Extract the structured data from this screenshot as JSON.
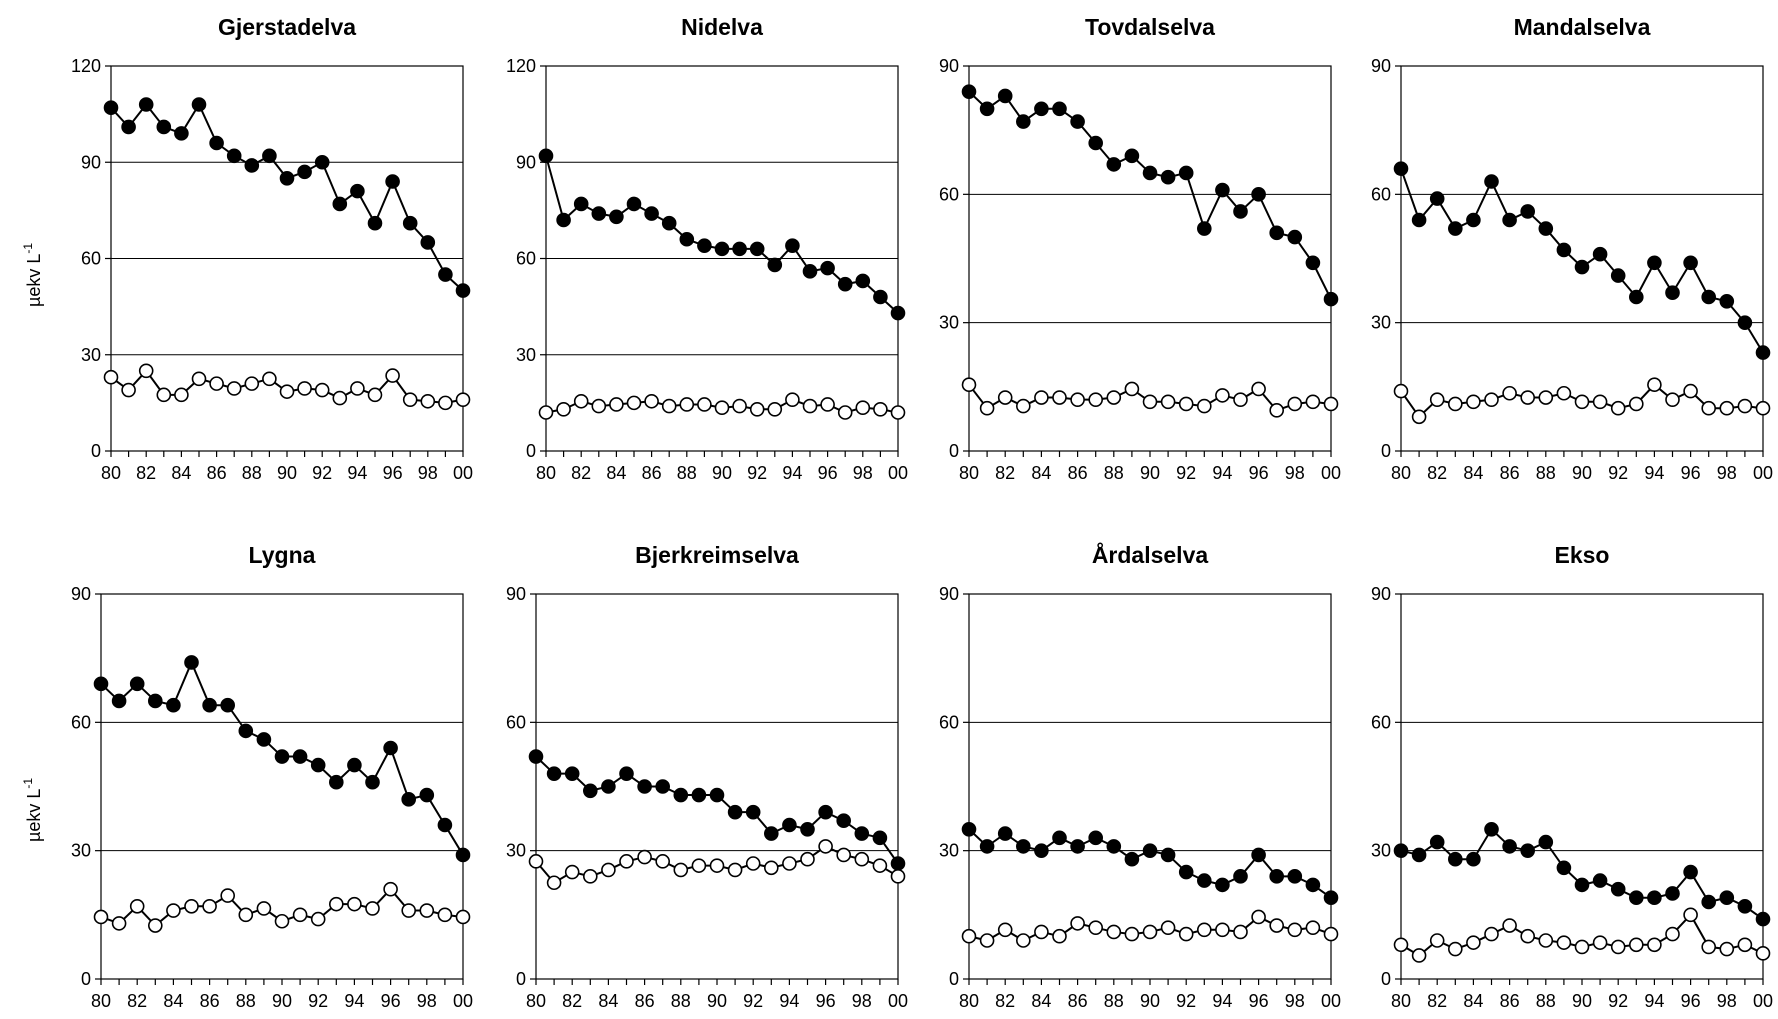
{
  "y_axis_label": "µekv L",
  "y_axis_label_exponent": "-1",
  "legend": [],
  "chart_data": [
    {
      "type": "line",
      "title": "Gjerstadelva",
      "x": [
        "80",
        "81",
        "82",
        "83",
        "84",
        "85",
        "86",
        "87",
        "88",
        "89",
        "90",
        "91",
        "92",
        "93",
        "94",
        "95",
        "96",
        "97",
        "98",
        "99",
        "00"
      ],
      "xticks": [
        "80",
        "82",
        "84",
        "86",
        "88",
        "90",
        "92",
        "94",
        "96",
        "98",
        "00"
      ],
      "ylim": [
        0,
        120
      ],
      "yticks": [
        "0",
        "30",
        "60",
        "90",
        "120"
      ],
      "gridlines": [
        30,
        60,
        90
      ],
      "series": [
        {
          "marker": "filled",
          "values": [
            107,
            101,
            108,
            101,
            99,
            108,
            96,
            92,
            89,
            92,
            85,
            87,
            90,
            77,
            81,
            71,
            84,
            71,
            65,
            55,
            50
          ]
        },
        {
          "marker": "open",
          "values": [
            23,
            19,
            25,
            17.5,
            17.5,
            22.5,
            21,
            19.5,
            21,
            22.5,
            18.5,
            19.5,
            19,
            16.5,
            19.5,
            17.5,
            23.5,
            16,
            15.5,
            15,
            16
          ]
        }
      ]
    },
    {
      "type": "line",
      "title": "Nidelva",
      "x": [
        "80",
        "81",
        "82",
        "83",
        "84",
        "85",
        "86",
        "87",
        "88",
        "89",
        "90",
        "91",
        "92",
        "93",
        "94",
        "95",
        "96",
        "97",
        "98",
        "99",
        "00"
      ],
      "xticks": [
        "80",
        "82",
        "84",
        "86",
        "88",
        "90",
        "92",
        "94",
        "96",
        "98",
        "00"
      ],
      "ylim": [
        0,
        120
      ],
      "yticks": [
        "0",
        "30",
        "60",
        "90",
        "120"
      ],
      "gridlines": [
        30,
        60,
        90
      ],
      "series": [
        {
          "marker": "filled",
          "values": [
            92,
            72,
            77,
            74,
            73,
            77,
            74,
            71,
            66,
            64,
            63,
            63,
            63,
            58,
            64,
            56,
            57,
            52,
            53,
            48,
            43
          ]
        },
        {
          "marker": "open",
          "values": [
            12,
            13,
            15.5,
            14,
            14.5,
            15,
            15.5,
            14,
            14.5,
            14.5,
            13.5,
            14,
            13,
            13,
            16,
            14,
            14.5,
            12,
            13.5,
            13,
            12
          ]
        }
      ]
    },
    {
      "type": "line",
      "title": "Tovdalselva",
      "x": [
        "80",
        "81",
        "82",
        "83",
        "84",
        "85",
        "86",
        "87",
        "88",
        "89",
        "90",
        "91",
        "92",
        "93",
        "94",
        "95",
        "96",
        "97",
        "98",
        "99",
        "00"
      ],
      "xticks": [
        "80",
        "82",
        "84",
        "86",
        "88",
        "90",
        "92",
        "94",
        "96",
        "98",
        "00"
      ],
      "ylim": [
        0,
        90
      ],
      "yticks": [
        "0",
        "30",
        "60",
        "90"
      ],
      "gridlines": [
        30,
        60
      ],
      "series": [
        {
          "marker": "filled",
          "values": [
            84,
            80,
            83,
            77,
            80,
            80,
            77,
            72,
            67,
            69,
            65,
            64,
            65,
            52,
            61,
            56,
            60,
            51,
            50,
            44,
            35.5
          ]
        },
        {
          "marker": "open",
          "values": [
            15.5,
            10,
            12.5,
            10.5,
            12.5,
            12.5,
            12,
            12,
            12.5,
            14.5,
            11.5,
            11.5,
            11,
            10.5,
            13,
            12,
            14.5,
            9.5,
            11,
            11.5,
            11
          ]
        }
      ]
    },
    {
      "type": "line",
      "title": "Mandalselva",
      "x": [
        "80",
        "81",
        "82",
        "83",
        "84",
        "85",
        "86",
        "87",
        "88",
        "89",
        "90",
        "91",
        "92",
        "93",
        "94",
        "95",
        "96",
        "97",
        "98",
        "99",
        "00"
      ],
      "xticks": [
        "80",
        "82",
        "84",
        "86",
        "88",
        "90",
        "92",
        "94",
        "96",
        "98",
        "00"
      ],
      "ylim": [
        0,
        90
      ],
      "yticks": [
        "0",
        "30",
        "60",
        "90"
      ],
      "gridlines": [
        30,
        60
      ],
      "series": [
        {
          "marker": "filled",
          "values": [
            66,
            54,
            59,
            52,
            54,
            63,
            54,
            56,
            52,
            47,
            43,
            46,
            41,
            36,
            44,
            37,
            44,
            36,
            35,
            30,
            23
          ]
        },
        {
          "marker": "open",
          "values": [
            14,
            8,
            12,
            11,
            11.5,
            12,
            13.5,
            12.5,
            12.5,
            13.5,
            11.5,
            11.5,
            10,
            11,
            15.5,
            12,
            14,
            10,
            10,
            10.5,
            10
          ]
        }
      ]
    },
    {
      "type": "line",
      "title": "Lygna",
      "x": [
        "80",
        "81",
        "82",
        "83",
        "84",
        "85",
        "86",
        "87",
        "88",
        "89",
        "90",
        "91",
        "92",
        "93",
        "94",
        "95",
        "96",
        "97",
        "98",
        "99",
        "00"
      ],
      "xticks": [
        "80",
        "82",
        "84",
        "86",
        "88",
        "90",
        "92",
        "94",
        "96",
        "98",
        "00"
      ],
      "ylim": [
        0,
        90
      ],
      "yticks": [
        "0",
        "30",
        "60",
        "90"
      ],
      "gridlines": [
        30,
        60
      ],
      "series": [
        {
          "marker": "filled",
          "values": [
            69,
            65,
            69,
            65,
            64,
            74,
            64,
            64,
            58,
            56,
            52,
            52,
            50,
            46,
            50,
            46,
            54,
            42,
            43,
            36,
            29
          ]
        },
        {
          "marker": "open",
          "values": [
            14.5,
            13,
            17,
            12.5,
            16,
            17,
            17,
            19.5,
            15,
            16.5,
            13.5,
            15,
            14,
            17.5,
            17.5,
            16.5,
            21,
            16,
            16,
            15,
            14.5
          ]
        }
      ]
    },
    {
      "type": "line",
      "title": "Bjerkreimselva",
      "x": [
        "80",
        "81",
        "82",
        "83",
        "84",
        "85",
        "86",
        "87",
        "88",
        "89",
        "90",
        "91",
        "92",
        "93",
        "94",
        "95",
        "96",
        "97",
        "98",
        "99",
        "00"
      ],
      "xticks": [
        "80",
        "82",
        "84",
        "86",
        "88",
        "90",
        "92",
        "94",
        "96",
        "98",
        "00"
      ],
      "ylim": [
        0,
        90
      ],
      "yticks": [
        "0",
        "30",
        "60",
        "90"
      ],
      "gridlines": [
        30,
        60
      ],
      "series": [
        {
          "marker": "filled",
          "values": [
            52,
            48,
            48,
            44,
            45,
            48,
            45,
            45,
            43,
            43,
            43,
            39,
            39,
            34,
            36,
            35,
            39,
            37,
            34,
            33,
            27
          ]
        },
        {
          "marker": "open",
          "values": [
            27.5,
            22.5,
            25,
            24,
            25.5,
            27.5,
            28.5,
            27.5,
            25.5,
            26.5,
            26.5,
            25.5,
            27,
            26,
            27,
            28,
            31,
            29,
            28,
            26.5,
            24
          ]
        }
      ]
    },
    {
      "type": "line",
      "title": "Årdalselva",
      "x": [
        "80",
        "81",
        "82",
        "83",
        "84",
        "85",
        "86",
        "87",
        "88",
        "89",
        "90",
        "91",
        "92",
        "93",
        "94",
        "95",
        "96",
        "97",
        "98",
        "99",
        "00"
      ],
      "xticks": [
        "80",
        "82",
        "84",
        "86",
        "88",
        "90",
        "92",
        "94",
        "96",
        "98",
        "00"
      ],
      "ylim": [
        0,
        90
      ],
      "yticks": [
        "0",
        "30",
        "60",
        "90"
      ],
      "gridlines": [
        30,
        60
      ],
      "series": [
        {
          "marker": "filled",
          "values": [
            35,
            31,
            34,
            31,
            30,
            33,
            31,
            33,
            31,
            28,
            30,
            29,
            25,
            23,
            22,
            24,
            29,
            24,
            24,
            22,
            19
          ]
        },
        {
          "marker": "open",
          "values": [
            10,
            9,
            11.5,
            9,
            11,
            10,
            13,
            12,
            11,
            10.5,
            11,
            12,
            10.5,
            11.5,
            11.5,
            11,
            14.5,
            12.5,
            11.5,
            12,
            10.5
          ]
        }
      ]
    },
    {
      "type": "line",
      "title": "Ekso",
      "x": [
        "80",
        "81",
        "82",
        "83",
        "84",
        "85",
        "86",
        "87",
        "88",
        "89",
        "90",
        "91",
        "92",
        "93",
        "94",
        "95",
        "96",
        "97",
        "98",
        "99",
        "00"
      ],
      "xticks": [
        "80",
        "82",
        "84",
        "86",
        "88",
        "90",
        "92",
        "94",
        "96",
        "98",
        "00"
      ],
      "ylim": [
        0,
        90
      ],
      "yticks": [
        "0",
        "30",
        "60",
        "90"
      ],
      "gridlines": [
        30,
        60
      ],
      "series": [
        {
          "marker": "filled",
          "values": [
            30,
            29,
            32,
            28,
            28,
            35,
            31,
            30,
            32,
            26,
            22,
            23,
            21,
            19,
            19,
            20,
            25,
            18,
            19,
            17,
            14
          ]
        },
        {
          "marker": "open",
          "values": [
            8,
            5.5,
            9,
            7,
            8.5,
            10.5,
            12.5,
            10,
            9,
            8.5,
            7.5,
            8.5,
            7.5,
            8,
            8,
            10.5,
            15,
            7.5,
            7,
            8,
            6
          ]
        }
      ]
    }
  ]
}
